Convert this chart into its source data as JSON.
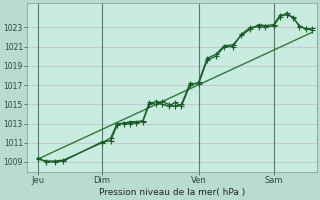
{
  "xlabel": "Pression niveau de la mer( hPa )",
  "bg_color": "#b8ddd0",
  "plot_bg_color": "#c8ece0",
  "grid_color": "#c8b8c8",
  "line_color": "#1a5c28",
  "trend_color": "#2d7a3a",
  "ylim": [
    1008.0,
    1025.5
  ],
  "yticks": [
    1009,
    1011,
    1013,
    1015,
    1017,
    1019,
    1021,
    1023
  ],
  "day_labels": [
    "Jeu",
    "Dim",
    "Ven",
    "Sam"
  ],
  "day_positions": [
    0.5,
    3.5,
    8.0,
    11.5
  ],
  "vline_positions": [
    0.5,
    3.5,
    8.0,
    11.5
  ],
  "xlim": [
    0,
    13.5
  ],
  "series1_x": [
    0.5,
    0.9,
    1.3,
    1.7,
    3.5,
    3.9,
    4.2,
    4.5,
    4.8,
    5.1,
    5.4,
    5.7,
    6.0,
    6.3,
    6.6,
    6.9,
    7.2,
    7.6,
    8.0,
    8.4,
    8.8,
    9.2,
    9.6,
    10.0,
    10.4,
    10.8,
    11.1,
    11.5,
    11.8,
    12.1,
    12.4,
    12.7,
    13.0,
    13.3
  ],
  "series1_y": [
    1009.3,
    1009.1,
    1009.1,
    1009.2,
    1011.0,
    1011.5,
    1013.0,
    1013.0,
    1013.2,
    1013.2,
    1013.3,
    1015.2,
    1015.0,
    1015.3,
    1015.0,
    1014.8,
    1015.0,
    1017.2,
    1017.1,
    1019.6,
    1020.0,
    1021.0,
    1021.0,
    1022.3,
    1023.0,
    1023.1,
    1023.0,
    1023.2,
    1024.1,
    1024.5,
    1024.0,
    1023.2,
    1022.8,
    1022.9
  ],
  "series2_x": [
    0.5,
    0.9,
    1.3,
    1.7,
    3.5,
    3.9,
    4.2,
    4.5,
    4.8,
    5.1,
    5.4,
    5.7,
    6.0,
    6.3,
    6.6,
    6.9,
    7.2,
    7.6,
    8.0,
    8.4,
    8.8,
    9.2,
    9.6,
    10.0,
    10.4,
    10.8,
    11.1,
    11.5,
    11.8,
    12.1,
    12.4,
    12.7,
    13.0,
    13.3
  ],
  "series2_y": [
    1009.4,
    1009.0,
    1009.0,
    1009.1,
    1011.1,
    1011.2,
    1012.8,
    1013.1,
    1013.0,
    1013.1,
    1013.2,
    1015.0,
    1015.3,
    1015.0,
    1014.8,
    1015.2,
    1014.8,
    1017.0,
    1017.3,
    1019.8,
    1020.2,
    1021.1,
    1021.2,
    1022.2,
    1022.8,
    1023.3,
    1023.2,
    1023.3,
    1024.3,
    1024.3,
    1024.1,
    1023.1,
    1022.9,
    1022.7
  ],
  "trend_x": [
    0.5,
    13.3
  ],
  "trend_y": [
    1009.3,
    1022.5
  ],
  "marker_size": 2.0,
  "linewidth": 0.9
}
